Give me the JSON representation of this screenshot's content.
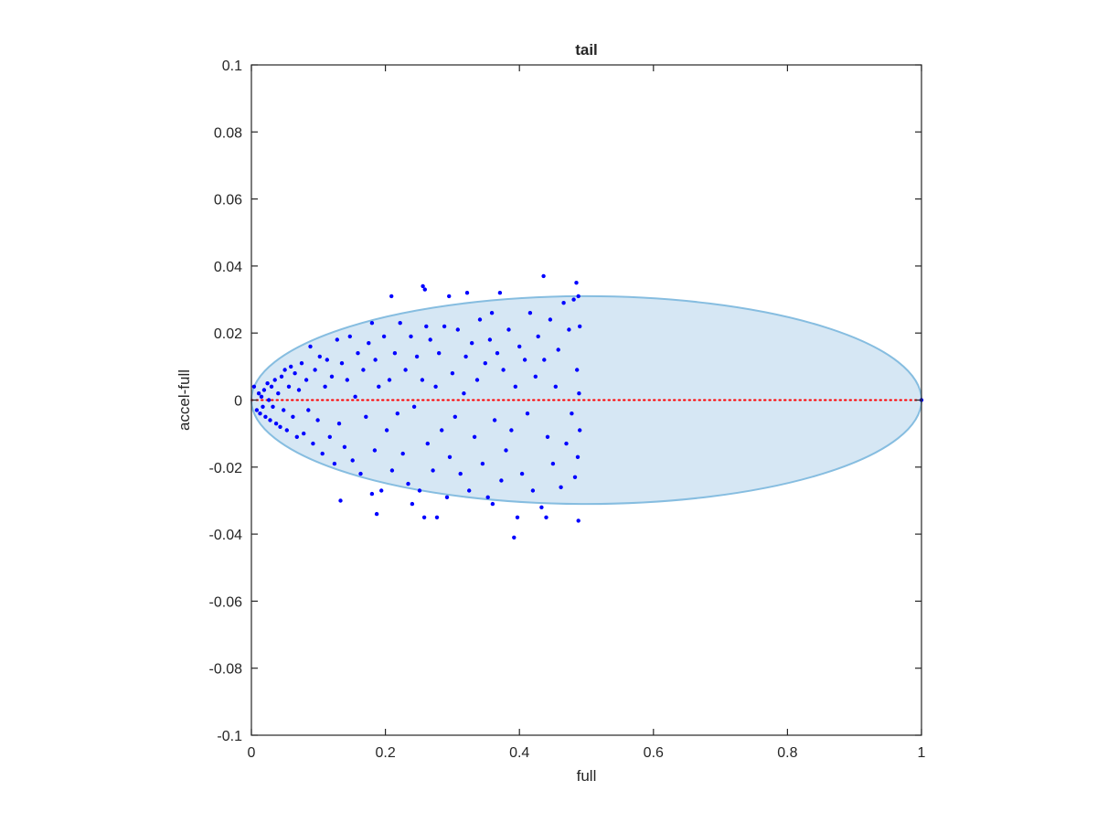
{
  "chart_data": {
    "type": "scatter",
    "title": "tail",
    "xlabel": "full",
    "ylabel": "accel-full",
    "xlim": [
      0,
      1
    ],
    "ylim": [
      -0.1,
      0.1
    ],
    "xticks": [
      0,
      0.2,
      0.4,
      0.6,
      0.8,
      1
    ],
    "xtick_labels": [
      "0",
      "0.2",
      "0.4",
      "0.6",
      "0.8",
      "1"
    ],
    "yticks": [
      -0.1,
      -0.08,
      -0.06,
      -0.04,
      -0.02,
      0,
      0.02,
      0.04,
      0.06,
      0.08,
      0.1
    ],
    "ytick_labels": [
      "-0.1",
      "-0.08",
      "-0.06",
      "-0.04",
      "-0.02",
      "0",
      "0.02",
      "0.04",
      "0.06",
      "0.08",
      "0.1"
    ],
    "grid": false,
    "ellipse": {
      "center": [
        0.5,
        0
      ],
      "semi_axes": [
        0.5,
        0.031
      ],
      "fill": "#d6e7f4",
      "stroke": "#86bde0"
    },
    "reference_line": {
      "y": 0,
      "x_range": [
        0,
        1
      ],
      "color": "#ff0000",
      "style": "dotted"
    },
    "marker_color": "#0000ff",
    "points": [
      [
        0.004,
        0.004
      ],
      [
        0.008,
        -0.003
      ],
      [
        0.011,
        0.002
      ],
      [
        0.013,
        -0.004
      ],
      [
        0.015,
        0.001
      ],
      [
        0.017,
        -0.002
      ],
      [
        0.019,
        0.003
      ],
      [
        0.021,
        -0.005
      ],
      [
        0.024,
        0.005
      ],
      [
        0.026,
        0.0
      ],
      [
        0.028,
        -0.006
      ],
      [
        0.03,
        0.004
      ],
      [
        0.032,
        -0.002
      ],
      [
        0.035,
        0.006
      ],
      [
        0.037,
        -0.007
      ],
      [
        0.04,
        0.002
      ],
      [
        0.043,
        -0.008
      ],
      [
        0.045,
        0.007
      ],
      [
        0.048,
        -0.003
      ],
      [
        0.05,
        0.009
      ],
      [
        0.053,
        -0.009
      ],
      [
        0.056,
        0.004
      ],
      [
        0.059,
        0.01
      ],
      [
        0.062,
        -0.005
      ],
      [
        0.065,
        0.008
      ],
      [
        0.068,
        -0.011
      ],
      [
        0.071,
        0.003
      ],
      [
        0.075,
        0.011
      ],
      [
        0.078,
        -0.01
      ],
      [
        0.082,
        0.006
      ],
      [
        0.085,
        -0.003
      ],
      [
        0.088,
        0.016
      ],
      [
        0.092,
        -0.013
      ],
      [
        0.095,
        0.009
      ],
      [
        0.099,
        -0.006
      ],
      [
        0.102,
        0.013
      ],
      [
        0.106,
        -0.016
      ],
      [
        0.11,
        0.004
      ],
      [
        0.113,
        0.012
      ],
      [
        0.117,
        -0.011
      ],
      [
        0.12,
        0.007
      ],
      [
        0.124,
        -0.019
      ],
      [
        0.128,
        0.018
      ],
      [
        0.131,
        -0.007
      ],
      [
        0.133,
        -0.03
      ],
      [
        0.135,
        0.011
      ],
      [
        0.139,
        -0.014
      ],
      [
        0.143,
        0.006
      ],
      [
        0.147,
        0.019
      ],
      [
        0.151,
        -0.018
      ],
      [
        0.155,
        0.001
      ],
      [
        0.159,
        0.014
      ],
      [
        0.163,
        -0.022
      ],
      [
        0.167,
        0.009
      ],
      [
        0.171,
        -0.005
      ],
      [
        0.175,
        0.017
      ],
      [
        0.18,
        0.023
      ],
      [
        0.18,
        -0.028
      ],
      [
        0.184,
        -0.015
      ],
      [
        0.185,
        0.012
      ],
      [
        0.187,
        -0.034
      ],
      [
        0.19,
        0.004
      ],
      [
        0.194,
        -0.027
      ],
      [
        0.198,
        0.019
      ],
      [
        0.202,
        -0.009
      ],
      [
        0.206,
        0.006
      ],
      [
        0.209,
        0.031
      ],
      [
        0.21,
        -0.021
      ],
      [
        0.214,
        0.014
      ],
      [
        0.218,
        -0.004
      ],
      [
        0.222,
        0.023
      ],
      [
        0.226,
        -0.016
      ],
      [
        0.23,
        0.009
      ],
      [
        0.234,
        -0.025
      ],
      [
        0.238,
        0.019
      ],
      [
        0.24,
        -0.031
      ],
      [
        0.243,
        -0.002
      ],
      [
        0.247,
        0.013
      ],
      [
        0.251,
        -0.027
      ],
      [
        0.255,
        0.006
      ],
      [
        0.256,
        0.034
      ],
      [
        0.258,
        -0.035
      ],
      [
        0.259,
        0.033
      ],
      [
        0.261,
        0.022
      ],
      [
        0.263,
        -0.013
      ],
      [
        0.267,
        0.018
      ],
      [
        0.271,
        -0.021
      ],
      [
        0.275,
        0.004
      ],
      [
        0.277,
        -0.035
      ],
      [
        0.28,
        0.014
      ],
      [
        0.284,
        -0.009
      ],
      [
        0.288,
        0.022
      ],
      [
        0.292,
        -0.029
      ],
      [
        0.295,
        0.031
      ],
      [
        0.296,
        -0.017
      ],
      [
        0.3,
        0.008
      ],
      [
        0.304,
        -0.005
      ],
      [
        0.308,
        0.021
      ],
      [
        0.312,
        -0.022
      ],
      [
        0.317,
        0.002
      ],
      [
        0.32,
        0.013
      ],
      [
        0.322,
        0.032
      ],
      [
        0.325,
        -0.027
      ],
      [
        0.329,
        0.017
      ],
      [
        0.333,
        -0.011
      ],
      [
        0.337,
        0.006
      ],
      [
        0.341,
        0.024
      ],
      [
        0.345,
        -0.019
      ],
      [
        0.349,
        0.011
      ],
      [
        0.353,
        -0.029
      ],
      [
        0.356,
        0.018
      ],
      [
        0.359,
        0.026
      ],
      [
        0.36,
        -0.031
      ],
      [
        0.363,
        -0.006
      ],
      [
        0.367,
        0.014
      ],
      [
        0.371,
        0.032
      ],
      [
        0.373,
        -0.024
      ],
      [
        0.376,
        0.009
      ],
      [
        0.38,
        -0.015
      ],
      [
        0.384,
        0.021
      ],
      [
        0.388,
        -0.009
      ],
      [
        0.392,
        -0.041
      ],
      [
        0.394,
        0.004
      ],
      [
        0.397,
        -0.035
      ],
      [
        0.4,
        0.016
      ],
      [
        0.404,
        -0.022
      ],
      [
        0.408,
        0.012
      ],
      [
        0.412,
        -0.004
      ],
      [
        0.416,
        0.026
      ],
      [
        0.42,
        -0.027
      ],
      [
        0.424,
        0.007
      ],
      [
        0.428,
        0.019
      ],
      [
        0.433,
        -0.032
      ],
      [
        0.436,
        0.037
      ],
      [
        0.437,
        0.012
      ],
      [
        0.44,
        -0.035
      ],
      [
        0.442,
        -0.011
      ],
      [
        0.446,
        0.024
      ],
      [
        0.45,
        -0.019
      ],
      [
        0.454,
        0.004
      ],
      [
        0.458,
        0.015
      ],
      [
        0.462,
        -0.026
      ],
      [
        0.466,
        0.029
      ],
      [
        0.47,
        -0.013
      ],
      [
        0.474,
        0.021
      ],
      [
        0.478,
        -0.004
      ],
      [
        0.481,
        0.03
      ],
      [
        0.483,
        -0.023
      ],
      [
        0.485,
        0.035
      ],
      [
        0.486,
        0.009
      ],
      [
        0.487,
        -0.017
      ],
      [
        0.488,
        0.031
      ],
      [
        0.488,
        -0.036
      ],
      [
        0.489,
        0.002
      ],
      [
        0.49,
        -0.009
      ],
      [
        0.49,
        0.022
      ],
      [
        1.0,
        0.0
      ]
    ]
  }
}
